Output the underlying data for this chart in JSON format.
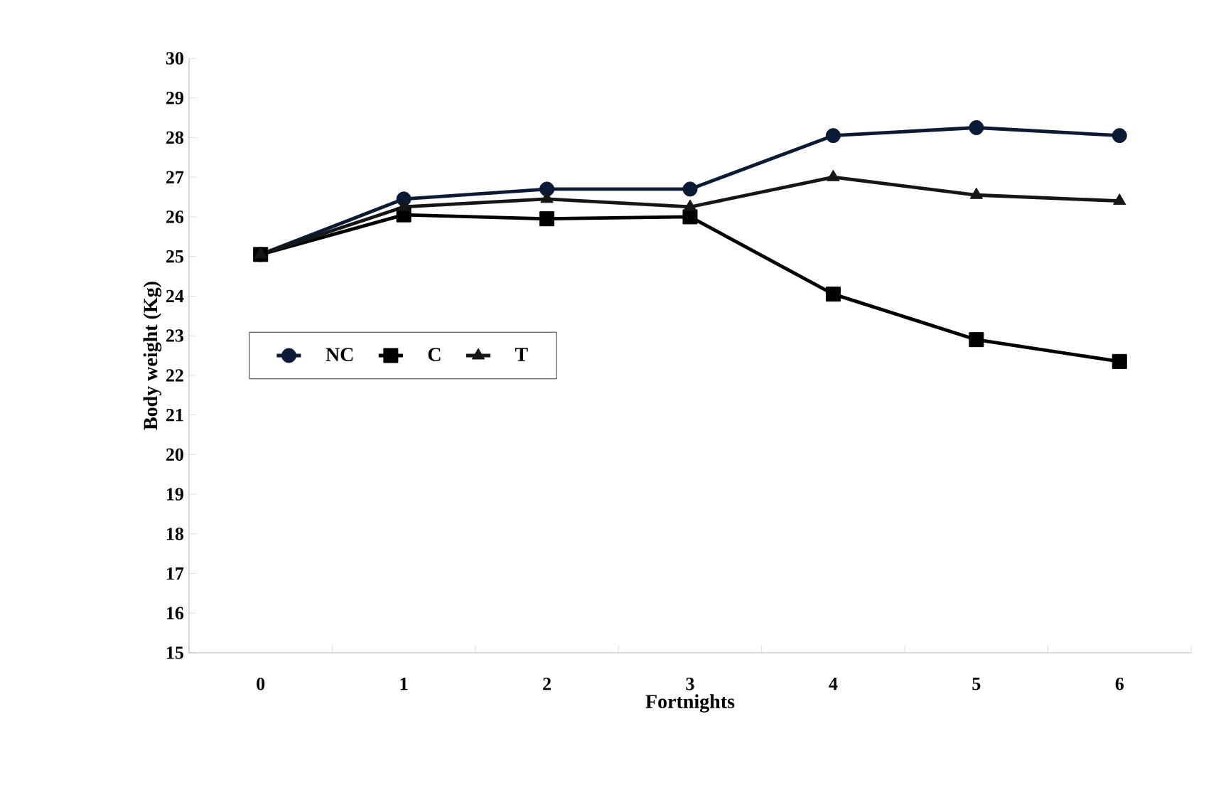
{
  "chart_data": {
    "type": "line",
    "xlabel": "Fortnights",
    "ylabel": "Body weight (Kg)",
    "categories": [
      "0",
      "1",
      "2",
      "3",
      "4",
      "5",
      "6"
    ],
    "series": [
      {
        "name": "NC",
        "color": "#0b1a35",
        "marker": "circle",
        "values": [
          25.05,
          26.45,
          26.7,
          26.7,
          28.05,
          28.25,
          28.05
        ]
      },
      {
        "name": "C",
        "color": "#000000",
        "marker": "square",
        "values": [
          25.05,
          26.05,
          25.95,
          26.0,
          24.05,
          22.9,
          22.35
        ]
      },
      {
        "name": "T",
        "color": "#161616",
        "marker": "triangle",
        "values": [
          25.05,
          26.25,
          26.45,
          26.25,
          27.0,
          26.55,
          26.4
        ]
      }
    ],
    "ylim": [
      15,
      30
    ],
    "yticks": [
      15,
      16,
      17,
      18,
      19,
      20,
      21,
      22,
      23,
      24,
      25,
      26,
      27,
      28,
      29,
      30
    ],
    "grid": false,
    "legend": "left",
    "line_style": "solid"
  }
}
